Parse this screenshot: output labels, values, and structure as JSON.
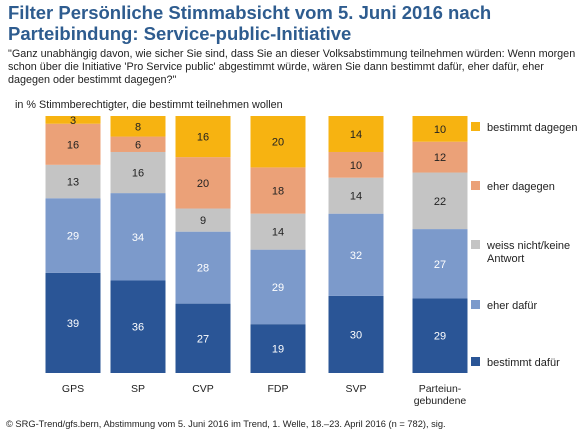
{
  "title": "Filter Persönliche Stimmabsicht vom 5. Juni 2016 nach Parteibindung: Service-public-Initiative",
  "question": "\"Ganz unabhängig davon, wie sicher Sie sind, dass Sie an dieser Volksabstimmung teilnehmen würden: Wenn morgen schon über die Initiative 'Pro Service public' abgestimmt würde, wären Sie dann bestimmt dafür, eher dafür, eher dagegen oder bestimmt dagegen?\"",
  "unit_label": "in % Stimmberechtigter, die bestimmt teilnehmen wollen",
  "footer": "© SRG-Trend/gfs.bern, Abstimmung vom 5. Juni 2016 im Trend, 1. Welle, 18.–23. April 2016 (n = 782), sig.",
  "colors": {
    "bestimmt_dafuer": "#2a5596",
    "eher_dafuer": "#7c9acb",
    "weiss_nicht": "#c4c4c4",
    "eher_dagegen": "#eba178",
    "bestimmt_dagegen": "#f7b311"
  },
  "chart_data": {
    "type": "bar",
    "stacked": true,
    "categories": [
      "GPS",
      "SP",
      "CVP",
      "FDP",
      "SVP",
      "Parteiun-\ngebundene"
    ],
    "series": [
      {
        "name": "bestimmt dafür",
        "values": [
          39,
          36,
          27,
          19,
          30,
          29
        ]
      },
      {
        "name": "eher dafür",
        "values": [
          29,
          34,
          28,
          29,
          32,
          27
        ]
      },
      {
        "name": "weiss nicht/keine Antwort",
        "values": [
          13,
          16,
          9,
          14,
          14,
          22
        ]
      },
      {
        "name": "eher dagegen",
        "values": [
          16,
          6,
          20,
          18,
          10,
          12
        ]
      },
      {
        "name": "bestimmt dagegen",
        "values": [
          3,
          8,
          16,
          20,
          14,
          10
        ]
      }
    ],
    "legend_order": [
      "bestimmt dagegen",
      "eher dagegen",
      "weiss nicht/keine Antwort",
      "eher dafür",
      "bestimmt dafür"
    ],
    "ylim": [
      0,
      100
    ],
    "legend_position": "right",
    "grid": false
  }
}
